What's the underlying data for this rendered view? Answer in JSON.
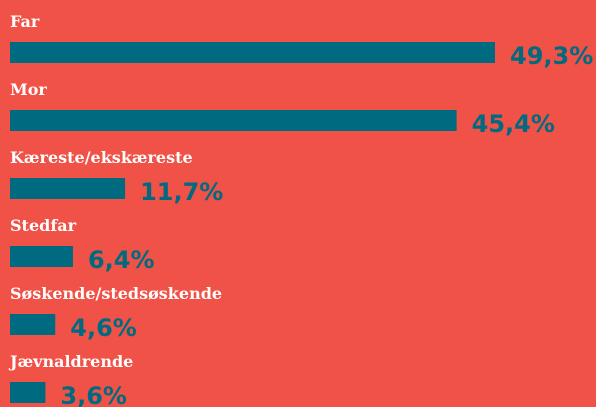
{
  "chart_data": {
    "type": "bar",
    "orientation": "horizontal",
    "color": "#006b80",
    "categories": [
      "Far",
      "Mor",
      "Kæreste/ekskæreste",
      "Stedfar",
      "Søskende/stedsøskende",
      "Jævnaldrende"
    ],
    "values": [
      49.3,
      45.4,
      11.7,
      6.4,
      4.6,
      3.6
    ],
    "value_labels": [
      "49,3%",
      "45,4%",
      "11,7%",
      "6,4%",
      "4,6%",
      "3,6%"
    ]
  }
}
